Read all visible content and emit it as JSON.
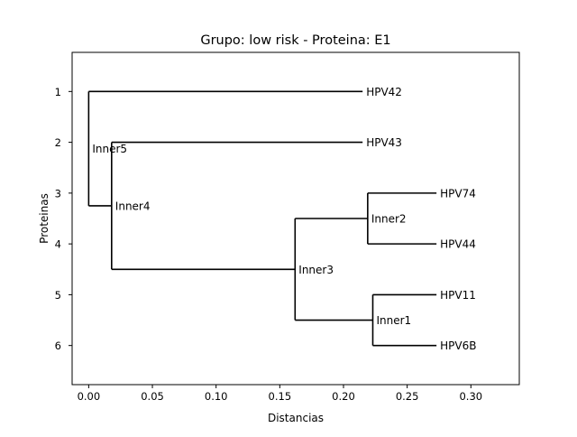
{
  "chart_data": {
    "type": "dendrogram",
    "title": "Grupo: low risk - Proteina: E1",
    "xlabel": "Distancias",
    "ylabel": "Proteinas",
    "xlim": [
      -0.013,
      0.338
    ],
    "ylim": [
      0.23,
      6.77
    ],
    "y_inverted": true,
    "xticks": [
      0.0,
      0.05,
      0.1,
      0.15,
      0.2,
      0.25,
      0.3
    ],
    "xtick_labels": [
      "0.00",
      "0.05",
      "0.10",
      "0.15",
      "0.20",
      "0.25",
      "0.30"
    ],
    "yticks": [
      1,
      2,
      3,
      4,
      5,
      6
    ],
    "ytick_labels": [
      "1",
      "2",
      "3",
      "4",
      "5",
      "6"
    ],
    "grid": false,
    "legend": false,
    "line_color": "#000000",
    "nodes": [
      {
        "id": "HPV42",
        "label": "HPV42",
        "x": 0.215,
        "y": 1,
        "leaf": true
      },
      {
        "id": "HPV43",
        "label": "HPV43",
        "x": 0.215,
        "y": 2,
        "leaf": true
      },
      {
        "id": "HPV74",
        "label": "HPV74",
        "x": 0.273,
        "y": 3,
        "leaf": true
      },
      {
        "id": "HPV44",
        "label": "HPV44",
        "x": 0.273,
        "y": 4,
        "leaf": true
      },
      {
        "id": "HPV11",
        "label": "HPV11",
        "x": 0.273,
        "y": 5,
        "leaf": true
      },
      {
        "id": "HPV6B",
        "label": "HPV6B",
        "x": 0.273,
        "y": 6,
        "leaf": true
      },
      {
        "id": "Inner1",
        "label": "Inner1",
        "x": 0.223,
        "y": 5.5,
        "leaf": false
      },
      {
        "id": "Inner2",
        "label": "Inner2",
        "x": 0.219,
        "y": 3.5,
        "leaf": false
      },
      {
        "id": "Inner3",
        "label": "Inner3",
        "x": 0.162,
        "y": 4.5,
        "leaf": false
      },
      {
        "id": "Inner4",
        "label": "Inner4",
        "x": 0.018,
        "y": 3.25,
        "leaf": false
      },
      {
        "id": "Inner5",
        "label": "Inner5",
        "x": 0.0,
        "y": 2.125,
        "leaf": false
      }
    ],
    "clades": [
      {
        "parent": "Inner5",
        "children": [
          "HPV42",
          "Inner4"
        ]
      },
      {
        "parent": "Inner4",
        "children": [
          "HPV43",
          "Inner3"
        ]
      },
      {
        "parent": "Inner3",
        "children": [
          "Inner2",
          "Inner1"
        ]
      },
      {
        "parent": "Inner2",
        "children": [
          "HPV74",
          "HPV44"
        ]
      },
      {
        "parent": "Inner1",
        "children": [
          "HPV11",
          "HPV6B"
        ]
      }
    ]
  }
}
